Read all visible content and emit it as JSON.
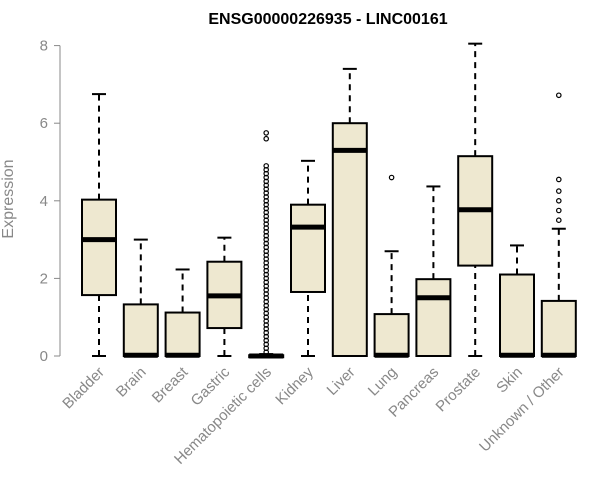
{
  "chart_data": {
    "type": "box",
    "title": "ENSG00000226935 - LINC00161",
    "xlabel": "",
    "ylabel": "Expression",
    "ylim": [
      0,
      8.2
    ],
    "yticks": [
      0,
      2,
      4,
      6,
      8
    ],
    "box_color": "#EEE8D0",
    "categories": [
      "Bladder",
      "Brain",
      "Breast",
      "Gastric",
      "Hematopoietic cells",
      "Kidney",
      "Liver",
      "Lung",
      "Pancreas",
      "Prostate",
      "Skin",
      "Unknown / Other"
    ],
    "boxes": [
      {
        "whisker_low": 0,
        "q1": 1.57,
        "median": 3.0,
        "q3": 4.03,
        "whisker_high": 6.75,
        "outliers": []
      },
      {
        "whisker_low": 0,
        "q1": 0,
        "median": 0.02,
        "q3": 1.33,
        "whisker_high": 3.0,
        "outliers": []
      },
      {
        "whisker_low": 0,
        "q1": 0,
        "median": 0.02,
        "q3": 1.12,
        "whisker_high": 2.23,
        "outliers": []
      },
      {
        "whisker_low": 0,
        "q1": 0.72,
        "median": 1.55,
        "q3": 2.43,
        "whisker_high": 3.05,
        "outliers": []
      },
      {
        "whisker_low": 0,
        "q1": 0,
        "median": 0.0,
        "q3": 0.02,
        "whisker_high": 0.05,
        "outliers": [
          0.1,
          0.2,
          0.3,
          0.4,
          0.5,
          0.6,
          0.7,
          0.8,
          0.9,
          1.0,
          1.1,
          1.2,
          1.3,
          1.4,
          1.5,
          1.6,
          1.7,
          1.8,
          1.9,
          2.0,
          2.1,
          2.2,
          2.3,
          2.4,
          2.5,
          2.6,
          2.7,
          2.8,
          2.9,
          3.0,
          3.1,
          3.2,
          3.3,
          3.4,
          3.5,
          3.6,
          3.7,
          3.8,
          3.9,
          4.0,
          4.1,
          4.2,
          4.3,
          4.4,
          4.5,
          4.6,
          4.7,
          4.8,
          4.9,
          5.6,
          5.75
        ]
      },
      {
        "whisker_low": 0,
        "q1": 1.65,
        "median": 3.32,
        "q3": 3.9,
        "whisker_high": 5.03,
        "outliers": []
      },
      {
        "whisker_low": 0,
        "q1": 0,
        "median": 5.3,
        "q3": 6.0,
        "whisker_high": 7.4,
        "outliers": []
      },
      {
        "whisker_low": 0,
        "q1": 0,
        "median": 0.02,
        "q3": 1.08,
        "whisker_high": 2.7,
        "outliers": [
          4.6
        ]
      },
      {
        "whisker_low": 0,
        "q1": 0,
        "median": 1.5,
        "q3": 1.98,
        "whisker_high": 4.37,
        "outliers": []
      },
      {
        "whisker_low": 0,
        "q1": 2.33,
        "median": 3.77,
        "q3": 5.15,
        "whisker_high": 8.05,
        "outliers": []
      },
      {
        "whisker_low": 0,
        "q1": 0,
        "median": 0.02,
        "q3": 2.1,
        "whisker_high": 2.85,
        "outliers": []
      },
      {
        "whisker_low": 0,
        "q1": 0,
        "median": 0.02,
        "q3": 1.42,
        "whisker_high": 3.28,
        "outliers": [
          3.5,
          3.75,
          4.0,
          4.25,
          4.55,
          6.72
        ]
      }
    ]
  }
}
